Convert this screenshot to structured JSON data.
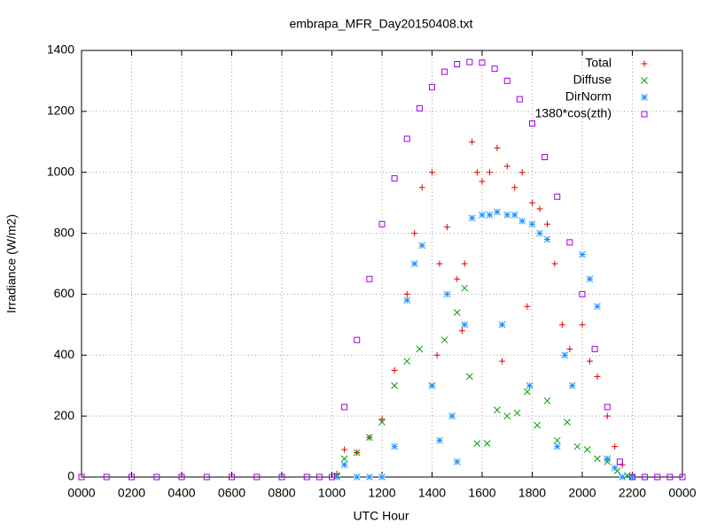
{
  "chart_data": {
    "type": "scatter",
    "title": "embrapa_MFR_Day20150408.txt",
    "x_label": "UTC Hour",
    "y_label": "Irradiance (W/m2)",
    "xlim": [
      0,
      24
    ],
    "ylim": [
      0,
      1400
    ],
    "xticks": [
      {
        "value": 0,
        "label": "0000"
      },
      {
        "value": 2,
        "label": "0200"
      },
      {
        "value": 4,
        "label": "0400"
      },
      {
        "value": 6,
        "label": "0600"
      },
      {
        "value": 8,
        "label": "0800"
      },
      {
        "value": 10,
        "label": "1000"
      },
      {
        "value": 12,
        "label": "1200"
      },
      {
        "value": 14,
        "label": "1400"
      },
      {
        "value": 16,
        "label": "1600"
      },
      {
        "value": 18,
        "label": "1800"
      },
      {
        "value": 20,
        "label": "2000"
      },
      {
        "value": 22,
        "label": "2200"
      },
      {
        "value": 24,
        "label": "0000"
      }
    ],
    "yticks": [
      0,
      200,
      400,
      600,
      800,
      1000,
      1200,
      1400
    ],
    "grid": true,
    "legend": "top-right",
    "series": [
      {
        "name": "Total",
        "color": "#e00000",
        "marker": "plus",
        "x": [
          10.2,
          10.5,
          11,
          11.5,
          12,
          12.5,
          13,
          13.3,
          13.6,
          14,
          14.2,
          14.3,
          14.6,
          15,
          15.2,
          15.3,
          15.6,
          15.8,
          16,
          16.3,
          16.6,
          16.8,
          17,
          17.3,
          17.6,
          17.8,
          18,
          18.3,
          18.6,
          18.9,
          19.2,
          19.5,
          20,
          20.3,
          20.6,
          21,
          21.3,
          21.6,
          22
        ],
        "values": [
          10,
          90,
          80,
          130,
          190,
          350,
          600,
          800,
          950,
          1000,
          400,
          700,
          820,
          650,
          480,
          700,
          1100,
          1000,
          970,
          1000,
          1080,
          380,
          1020,
          950,
          1000,
          560,
          900,
          880,
          830,
          700,
          500,
          420,
          500,
          380,
          330,
          200,
          100,
          40,
          5
        ]
      },
      {
        "name": "Diffuse",
        "color": "#00a000",
        "marker": "cross",
        "x": [
          10.2,
          10.5,
          11,
          11.5,
          12,
          12.5,
          13,
          13.5,
          14,
          14.5,
          15,
          15.3,
          15.5,
          15.8,
          16.2,
          16.6,
          17,
          17.4,
          17.8,
          18.2,
          18.6,
          19,
          19.4,
          19.8,
          20.2,
          20.6,
          21,
          21.4,
          21.8
        ],
        "values": [
          5,
          60,
          80,
          130,
          180,
          300,
          380,
          420,
          300,
          450,
          540,
          620,
          330,
          110,
          110,
          220,
          200,
          210,
          280,
          170,
          250,
          120,
          180,
          100,
          90,
          60,
          50,
          20,
          5
        ]
      },
      {
        "name": "DirNorm",
        "color": "#1e90ff",
        "marker": "star",
        "x": [
          10.2,
          10.5,
          11,
          11.5,
          12,
          12.5,
          13,
          13.3,
          13.6,
          14,
          14.3,
          14.6,
          14.8,
          15,
          15.3,
          15.6,
          16,
          16.3,
          16.6,
          16.8,
          17,
          17.3,
          17.6,
          17.9,
          18,
          18.3,
          18.6,
          19,
          19.3,
          19.6,
          20,
          20.3,
          20.6,
          21,
          21.3,
          21.6,
          22
        ],
        "values": [
          0,
          40,
          0,
          0,
          0,
          100,
          580,
          700,
          760,
          300,
          120,
          600,
          200,
          50,
          500,
          850,
          860,
          860,
          870,
          500,
          860,
          860,
          840,
          300,
          830,
          800,
          780,
          100,
          400,
          300,
          730,
          650,
          560,
          60,
          30,
          0,
          0
        ]
      },
      {
        "name": "1380*cos(zth)",
        "color": "#a000e0",
        "marker": "square",
        "x": [
          0,
          1,
          2,
          3,
          4,
          5,
          6,
          7,
          8,
          9,
          9.5,
          10,
          10.5,
          11,
          11.5,
          12,
          12.5,
          13,
          13.5,
          14,
          14.5,
          15,
          15.5,
          16,
          16.5,
          17,
          17.5,
          18,
          18.5,
          19,
          19.5,
          20,
          20.5,
          21,
          21.5,
          22,
          22.5,
          23,
          23.5,
          24
        ],
        "values": [
          0,
          0,
          0,
          0,
          0,
          0,
          0,
          0,
          0,
          0,
          0,
          0,
          230,
          450,
          650,
          830,
          980,
          1110,
          1210,
          1280,
          1330,
          1355,
          1362,
          1360,
          1340,
          1300,
          1240,
          1160,
          1050,
          920,
          770,
          600,
          420,
          230,
          50,
          0,
          0,
          0,
          0,
          0
        ]
      }
    ]
  }
}
